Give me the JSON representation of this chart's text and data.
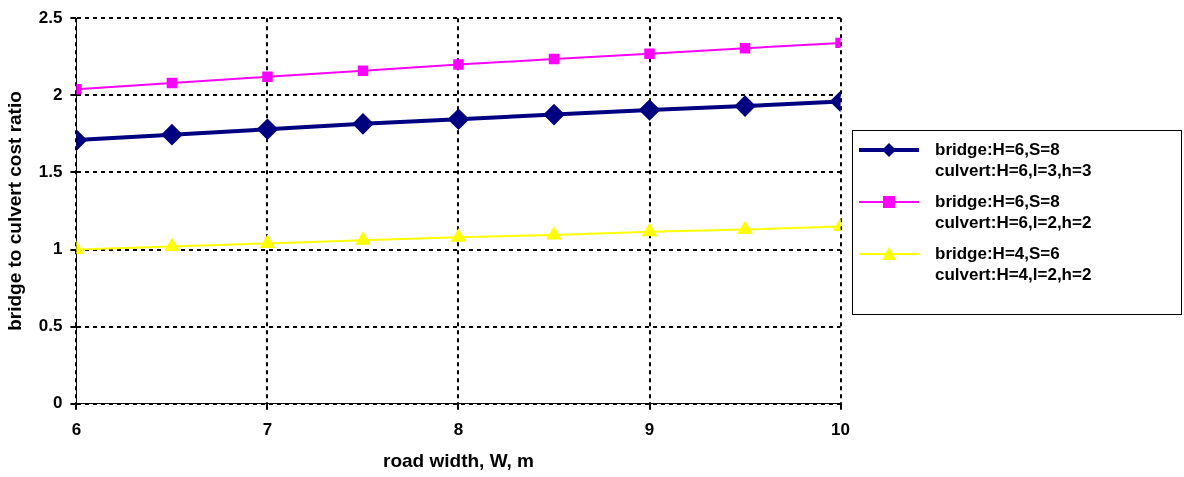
{
  "chart_data": {
    "type": "line",
    "xlabel": "road width, W, m",
    "ylabel": "bridge to culvert cost ratio",
    "x": [
      6,
      6.5,
      7,
      7.5,
      8,
      8.5,
      9,
      9.5,
      10
    ],
    "xlim": [
      6,
      10
    ],
    "xticks": [
      6,
      7,
      8,
      9,
      10
    ],
    "ylim": [
      0,
      2.5
    ],
    "yticks": [
      0,
      0.5,
      1,
      1.5,
      2,
      2.5
    ],
    "grid": true,
    "legend": "right",
    "line_style": "solid",
    "series": [
      {
        "name": "bridge:H=6,S=8 culvert:H=6,l=3,h=3",
        "color": "#000080",
        "marker": "diamond",
        "values": [
          1.71,
          1.745,
          1.78,
          1.815,
          1.845,
          1.875,
          1.905,
          1.93,
          1.96
        ]
      },
      {
        "name": "bridge:H=6,S=8 culvert:H=6,l=2,h=2",
        "color": "#ff00ff",
        "marker": "square",
        "values": [
          2.04,
          2.08,
          2.12,
          2.16,
          2.2,
          2.235,
          2.27,
          2.305,
          2.34
        ]
      },
      {
        "name": "bridge:H=4,S=6 culvert:H=4,l=2,h=2",
        "color": "#ffff00",
        "marker": "triangle",
        "values": [
          1.0,
          1.02,
          1.04,
          1.06,
          1.08,
          1.095,
          1.115,
          1.13,
          1.15
        ]
      }
    ]
  }
}
